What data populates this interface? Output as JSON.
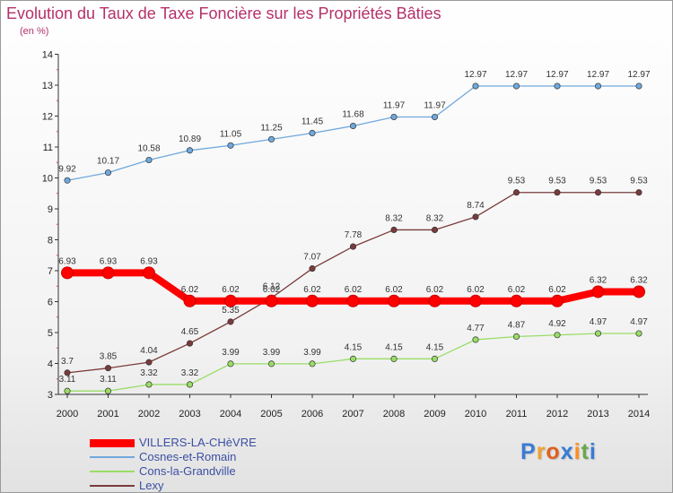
{
  "chart_data": {
    "type": "line",
    "title": "Evolution du Taux de Taxe Foncière sur les Propriétés Bâties",
    "subtitle": "(en %)",
    "x": [
      "2000",
      "2001",
      "2002",
      "2003",
      "2004",
      "2005",
      "2006",
      "2007",
      "2008",
      "2009",
      "2010",
      "2011",
      "2012",
      "2013",
      "2014"
    ],
    "ylim": [
      3,
      14
    ],
    "yticks": [
      "3",
      "4",
      "5",
      "6",
      "7",
      "8",
      "9",
      "10",
      "11",
      "12",
      "13",
      "14"
    ],
    "grid": false,
    "legend_position": "bottom-left",
    "series": [
      {
        "name": "VILLERS-LA-CHèVRE",
        "color": "#ff0000",
        "values": [
          6.93,
          6.93,
          6.93,
          6.02,
          6.02,
          6.02,
          6.02,
          6.02,
          6.02,
          6.02,
          6.02,
          6.02,
          6.02,
          6.32,
          6.32
        ],
        "labels": [
          "6.93",
          "6.93",
          "6.93",
          "6.02",
          "6.02",
          "6.02",
          "6.02",
          "6.02",
          "6.02",
          "6.02",
          "6.02",
          "6.02",
          "6.02",
          "6.32",
          "6.32"
        ]
      },
      {
        "name": "Cosnes-et-Romain",
        "color": "#6fa8dc",
        "values": [
          9.92,
          10.17,
          10.58,
          10.89,
          11.05,
          11.25,
          11.45,
          11.68,
          11.97,
          11.97,
          12.97,
          12.97,
          12.97,
          12.97,
          12.97
        ],
        "labels": [
          "9.92",
          "10.17",
          "10.58",
          "10.89",
          "11.05",
          "11.25",
          "11.45",
          "11.68",
          "11.97",
          "11.97",
          "12.97",
          "12.97",
          "12.97",
          "12.97",
          "12.97"
        ]
      },
      {
        "name": "Cons-la-Grandville",
        "color": "#99dd66",
        "values": [
          3.11,
          3.11,
          3.32,
          3.32,
          3.99,
          3.99,
          3.99,
          4.15,
          4.15,
          4.15,
          4.77,
          4.87,
          4.92,
          4.97,
          4.97
        ],
        "labels": [
          "3.11",
          "3.11",
          "3.32",
          "3.32",
          "3.99",
          "3.99",
          "3.99",
          "4.15",
          "4.15",
          "4.15",
          "4.77",
          "4.87",
          "4.92",
          "4.97",
          "4.97"
        ]
      },
      {
        "name": "Lexy",
        "color": "#7a3b3b",
        "values": [
          3.7,
          3.85,
          4.04,
          4.65,
          5.35,
          6.12,
          7.07,
          7.78,
          8.32,
          8.32,
          8.74,
          9.53,
          9.53,
          9.53,
          9.53
        ],
        "labels": [
          "3.7",
          "3.85",
          "4.04",
          "4.65",
          "5.35",
          "6.12",
          "7.07",
          "7.78",
          "8.32",
          "8.32",
          "8.74",
          "9.53",
          "9.53",
          "9.53",
          "9.53"
        ]
      }
    ]
  },
  "brand": {
    "letters": [
      "P",
      "r",
      "o",
      "x",
      "i",
      "t",
      "i"
    ],
    "colors": [
      "#3a7bd5",
      "#f0a030",
      "#e06020",
      "#3a7bd5",
      "#ff8c1a",
      "#6aa84f",
      "#3a7bd5"
    ]
  }
}
